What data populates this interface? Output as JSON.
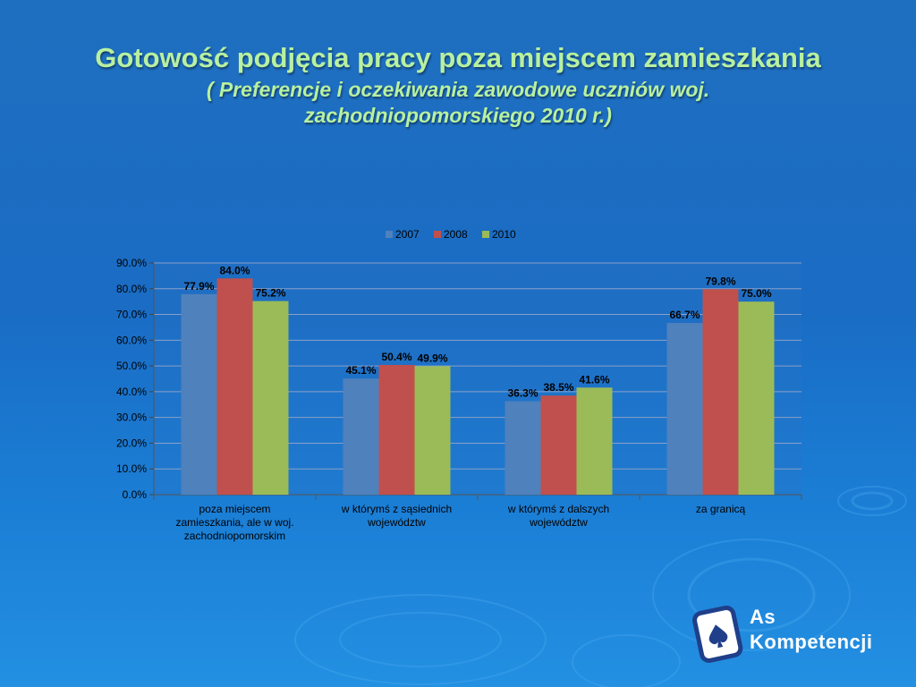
{
  "slide": {
    "title": "Gotowość podjęcia pracy poza miejscem zamieszkania",
    "subtitle": "( Preferencje i oczekiwania zawodowe uczniów woj. zachodniopomorskiego  2010 r.)"
  },
  "logo": {
    "line1": "As",
    "line2": "Kompetencji"
  },
  "colors": {
    "title": "#b8f0a0",
    "series": [
      "#4f81bd",
      "#c0504d",
      "#9bbb59"
    ],
    "axis_text": "#000000",
    "gridline": "#8aa0c8"
  },
  "chart_data": {
    "type": "bar",
    "title": "",
    "xlabel": "",
    "ylabel": "",
    "ylim": [
      0,
      90
    ],
    "yticks": [
      "0.0%",
      "10.0%",
      "20.0%",
      "30.0%",
      "40.0%",
      "50.0%",
      "60.0%",
      "70.0%",
      "80.0%",
      "90.0%"
    ],
    "grid": true,
    "legend_position": "top",
    "categories": [
      "poza miejscem zamieszkania, ale w woj. zachodniopomorskim",
      "w którymś z sąsiednich województw",
      "w którymś z dalszych województw",
      "za granicą"
    ],
    "series": [
      {
        "name": "2007",
        "values": [
          77.9,
          45.1,
          36.3,
          66.7
        ],
        "labels": [
          "77.9%",
          "45.1%",
          "36.3%",
          "66.7%"
        ]
      },
      {
        "name": "2008",
        "values": [
          84.0,
          50.4,
          38.5,
          79.8
        ],
        "labels": [
          "84.0%",
          "50.4%",
          "38.5%",
          "79.8%"
        ]
      },
      {
        "name": "2010",
        "values": [
          75.2,
          49.9,
          41.6,
          75.0
        ],
        "labels": [
          "75.2%",
          "49.9%",
          "41.6%",
          "75.0%"
        ]
      }
    ]
  }
}
